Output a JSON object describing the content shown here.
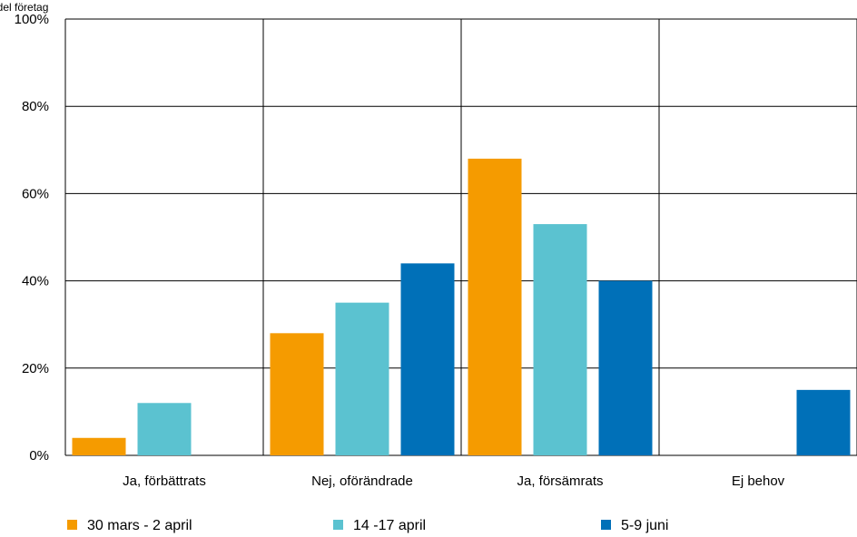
{
  "chart_data": {
    "type": "bar",
    "unit_label": "Andel företag",
    "categories": [
      "Ja, förbättrats",
      "Nej, oförändrade",
      "Ja, försämrats",
      "Ej behov"
    ],
    "series": [
      {
        "name": "30 mars - 2 april",
        "color": "#F59B00",
        "values": [
          4,
          28,
          68,
          0
        ]
      },
      {
        "name": "14 -17 april",
        "color": "#5BC2D0",
        "values": [
          12,
          35,
          53,
          0
        ]
      },
      {
        "name": "5-9 juni",
        "color": "#0070B8",
        "values": [
          0,
          44,
          40,
          15
        ]
      }
    ],
    "ylim": [
      0,
      100
    ],
    "yticks": [
      "0%",
      "20%",
      "40%",
      "60%",
      "80%",
      "100%"
    ],
    "ytick_values": [
      0,
      20,
      40,
      60,
      80,
      100
    ],
    "grid": true,
    "legend_position": "bottom"
  }
}
